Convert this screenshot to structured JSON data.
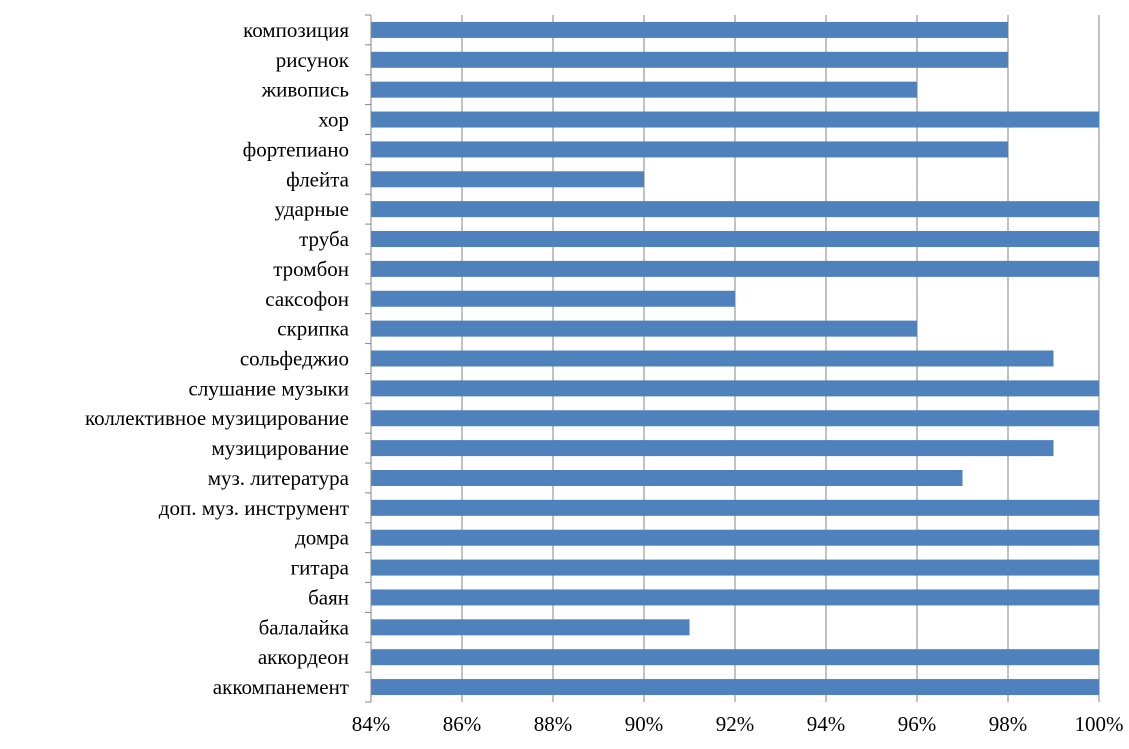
{
  "chart_data": {
    "type": "bar",
    "orientation": "horizontal",
    "title": "",
    "xlabel": "",
    "ylabel": "",
    "categories": [
      "композиция",
      "рисунок",
      "живопись",
      "хор",
      "фортепиано",
      "флейта",
      "ударные",
      "труба",
      "тромбон",
      "саксофон",
      "скрипка",
      "сольфеджио",
      "слушание музыки",
      "коллективное музицирование",
      "музицирование",
      "муз. литература",
      "доп. муз. инструмент",
      "домра",
      "гитара",
      "баян",
      "балалайка",
      "аккордеон",
      "аккомпанемент"
    ],
    "values": [
      98,
      98,
      96,
      100,
      98,
      90,
      100,
      100,
      100,
      92,
      96,
      99,
      100,
      100,
      99,
      97,
      100,
      100,
      100,
      100,
      91,
      100,
      100
    ],
    "xlim": [
      84,
      100
    ],
    "xticks": [
      "84%",
      "86%",
      "88%",
      "90%",
      "92%",
      "94%",
      "96%",
      "98%",
      "100%"
    ],
    "grid": "vertical",
    "legend": "none",
    "bar_color": "#4F81BD",
    "gridline_color": "#868686"
  }
}
